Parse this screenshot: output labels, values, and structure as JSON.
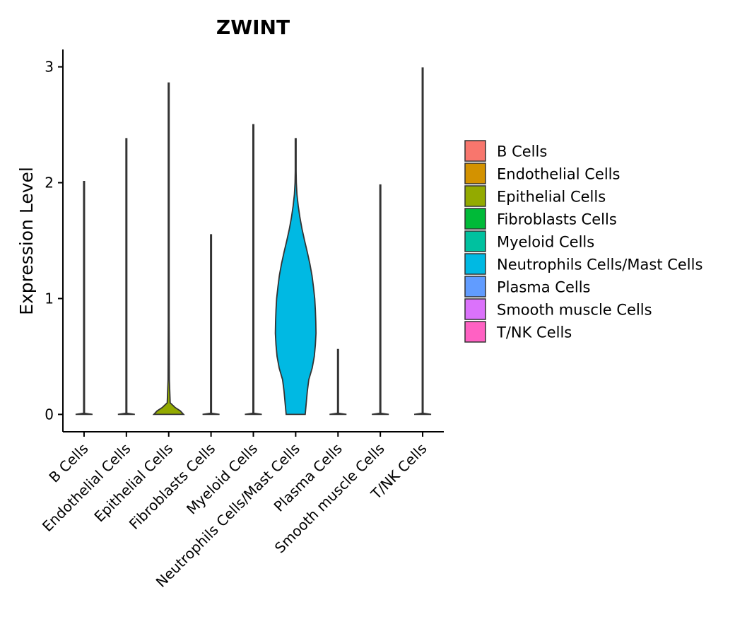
{
  "chart_data": {
    "type": "violin",
    "title": "ZWINT",
    "xlabel": "",
    "ylabel": "Expression Level",
    "ylim": [
      -0.15,
      3.15
    ],
    "yticks": [
      0,
      1,
      2,
      3
    ],
    "yticklabels": [
      "0",
      "1",
      "2",
      "3"
    ],
    "categories": [
      "B Cells",
      "Endothelial Cells",
      "Epithelial Cells",
      "Fibroblasts Cells",
      "Myeloid Cells",
      "Neutrophils Cells/Mast Cells",
      "Plasma Cells",
      "Smooth muscle Cells",
      "T/NK Cells"
    ],
    "max_values": [
      2.01,
      2.38,
      2.86,
      1.55,
      2.5,
      2.38,
      0.56,
      1.98,
      2.99
    ],
    "density_profiles": [
      [
        [
          0,
          0.4
        ],
        [
          0.01,
          0.02
        ],
        [
          2.01,
          0.02
        ]
      ],
      [
        [
          0,
          0.4
        ],
        [
          0.01,
          0.02
        ],
        [
          2.38,
          0.02
        ]
      ],
      [
        [
          0,
          0.7
        ],
        [
          0.03,
          0.55
        ],
        [
          0.06,
          0.3
        ],
        [
          0.1,
          0.07
        ],
        [
          0.3,
          0.03
        ],
        [
          0.8,
          0.02
        ],
        [
          2.86,
          0.02
        ]
      ],
      [
        [
          0,
          0.4
        ],
        [
          0.01,
          0.02
        ],
        [
          1.55,
          0.02
        ]
      ],
      [
        [
          0,
          0.4
        ],
        [
          0.01,
          0.02
        ],
        [
          2.5,
          0.02
        ]
      ],
      [
        [
          0,
          0.45
        ],
        [
          0.1,
          0.5
        ],
        [
          0.2,
          0.55
        ],
        [
          0.3,
          0.62
        ],
        [
          0.4,
          0.78
        ],
        [
          0.5,
          0.88
        ],
        [
          0.6,
          0.93
        ],
        [
          0.7,
          0.96
        ],
        [
          0.8,
          0.95
        ],
        [
          0.9,
          0.93
        ],
        [
          1.0,
          0.9
        ],
        [
          1.1,
          0.84
        ],
        [
          1.2,
          0.77
        ],
        [
          1.3,
          0.67
        ],
        [
          1.4,
          0.55
        ],
        [
          1.5,
          0.42
        ],
        [
          1.6,
          0.3
        ],
        [
          1.7,
          0.2
        ],
        [
          1.8,
          0.12
        ],
        [
          1.9,
          0.06
        ],
        [
          2.0,
          0.03
        ],
        [
          2.1,
          0.02
        ],
        [
          2.38,
          0.02
        ]
      ],
      [
        [
          0,
          0.4
        ],
        [
          0.01,
          0.02
        ],
        [
          0.56,
          0.02
        ]
      ],
      [
        [
          0,
          0.4
        ],
        [
          0.01,
          0.02
        ],
        [
          1.98,
          0.02
        ]
      ],
      [
        [
          0,
          0.4
        ],
        [
          0.01,
          0.02
        ],
        [
          2.99,
          0.02
        ]
      ]
    ],
    "colors": [
      "#F8766D",
      "#D39200",
      "#93AA00",
      "#00BA38",
      "#00C19F",
      "#00B9E3",
      "#619CFF",
      "#DB72FB",
      "#FF61C3"
    ],
    "legend": {
      "position": "right",
      "entries": [
        "B Cells",
        "Endothelial Cells",
        "Epithelial Cells",
        "Fibroblasts Cells",
        "Myeloid Cells",
        "Neutrophils Cells/Mast Cells",
        "Plasma Cells",
        "Smooth muscle Cells",
        "T/NK Cells"
      ]
    }
  }
}
